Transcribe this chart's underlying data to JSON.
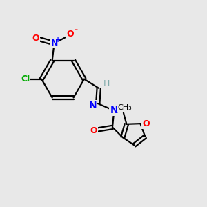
{
  "background_color": "#e8e8e8",
  "atom_colors": {
    "C": "#000000",
    "H": "#7faaaa",
    "N": "#0000ff",
    "O": "#ff0000",
    "Cl": "#00aa00"
  },
  "bond_color": "#000000",
  "bond_width": 1.6,
  "figsize": [
    3.0,
    3.0
  ],
  "dpi": 100
}
